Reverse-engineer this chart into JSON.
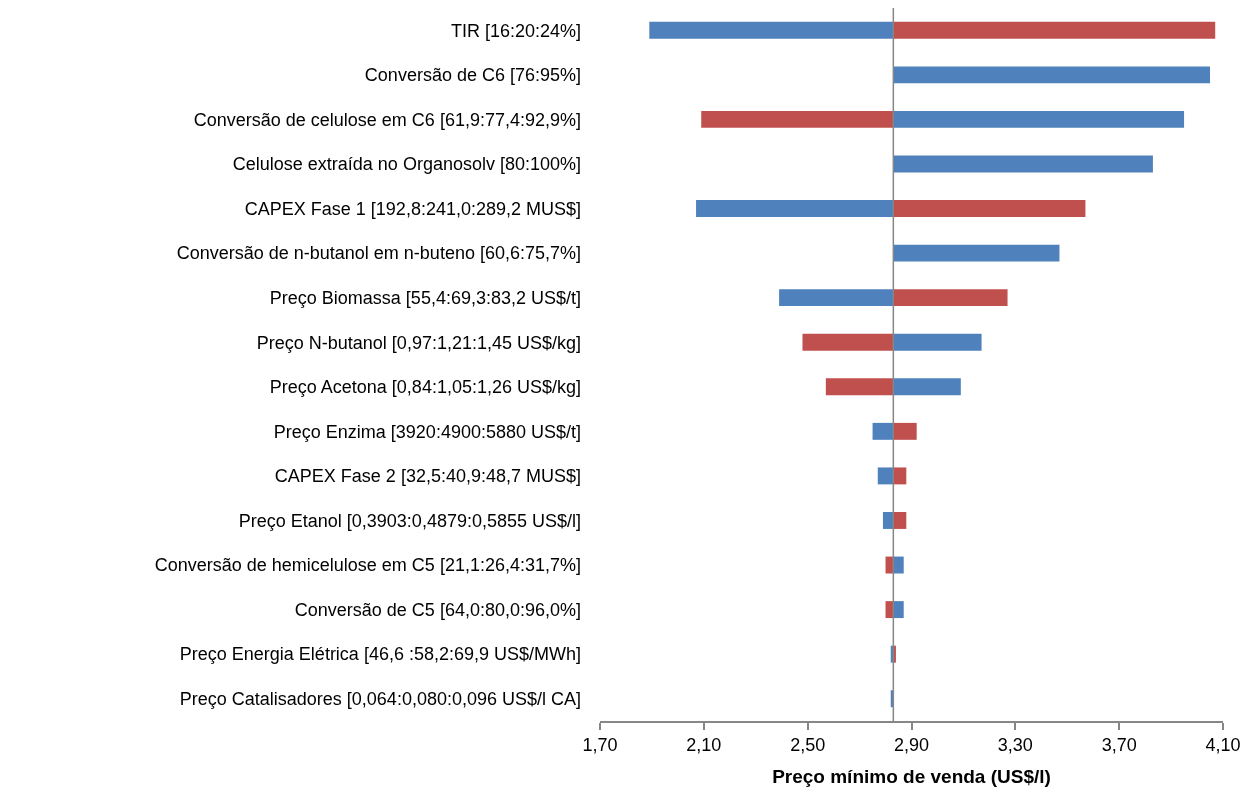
{
  "chart_data": {
    "type": "bar",
    "orientation": "horizontal",
    "xlabel": "Preço mínimo de venda (US$/l)",
    "categories": [
      "TIR [16:20:24%]",
      "Conversão de C6 [76:95%]",
      "Conversão de celulose em C6 [61,9:77,4:92,9%]",
      "Celulose extraída no Organosolv [80:100%]",
      "CAPEX Fase 1 [192,8:241,0:289,2 MUS$]",
      "Conversão de n-butanol em n-buteno [60,6:75,7%]",
      "Preço Biomassa [55,4:69,3:83,2 US$/t]",
      "Preço N-butanol [0,97:1,21:1,45 US$/kg]",
      "Preço Acetona [0,84:1,05:1,26 US$/kg]",
      "Preço Enzima [3920:4900:5880 US$/t]",
      "CAPEX Fase 2 [32,5:40,9:48,7 MUS$]",
      "Preço Etanol [0,3903:0,4879:0,5855 US$/l]",
      "Conversão de hemicelulose em C5 [21,1:26,4:31,7%]",
      "Conversão de C5 [64,0:80,0:96,0%]",
      "Preço Energia Elétrica [46,6 :58,2:69,9 US$/MWh]",
      "Preço Catalisadores [0,064:0,080:0,096 US$/l CA]"
    ],
    "ref_lines": [
      {
        "axis": "x",
        "value": 2.83,
        "color": "#868686"
      }
    ],
    "series": [
      {
        "color": "#4f81bd",
        "base": [
          2.83,
          2.83,
          2.83,
          2.83,
          2.83,
          2.83,
          2.83,
          2.83,
          2.83,
          2.83,
          2.83,
          2.83,
          2.83,
          2.83,
          2.83,
          2.83
        ],
        "values": [
          -0.94,
          1.22,
          1.12,
          1.0,
          -0.76,
          0.64,
          -0.44,
          0.34,
          0.26,
          -0.08,
          -0.06,
          -0.04,
          0.04,
          0.04,
          -0.01,
          -0.01
        ]
      },
      {
        "color": "#c0504d",
        "base": [
          2.83,
          null,
          2.83,
          null,
          2.83,
          null,
          2.83,
          2.83,
          2.83,
          2.83,
          2.83,
          2.83,
          2.83,
          2.83,
          2.83,
          null
        ],
        "values": [
          1.24,
          null,
          -0.74,
          null,
          0.74,
          null,
          0.44,
          -0.35,
          -0.26,
          0.09,
          0.05,
          0.05,
          -0.03,
          -0.03,
          0.01,
          null
        ]
      }
    ],
    "xlim": [
      1.7,
      4.1
    ],
    "xticks": [
      {
        "value": 1.7,
        "label": "1,70"
      },
      {
        "value": 2.1,
        "label": "2,10"
      },
      {
        "value": 2.5,
        "label": "2,50"
      },
      {
        "value": 2.9,
        "label": "2,90"
      },
      {
        "value": 3.3,
        "label": "3,30"
      },
      {
        "value": 3.7,
        "label": "3,70"
      },
      {
        "value": 4.1,
        "label": "4,10"
      }
    ],
    "line_style": "solid"
  }
}
